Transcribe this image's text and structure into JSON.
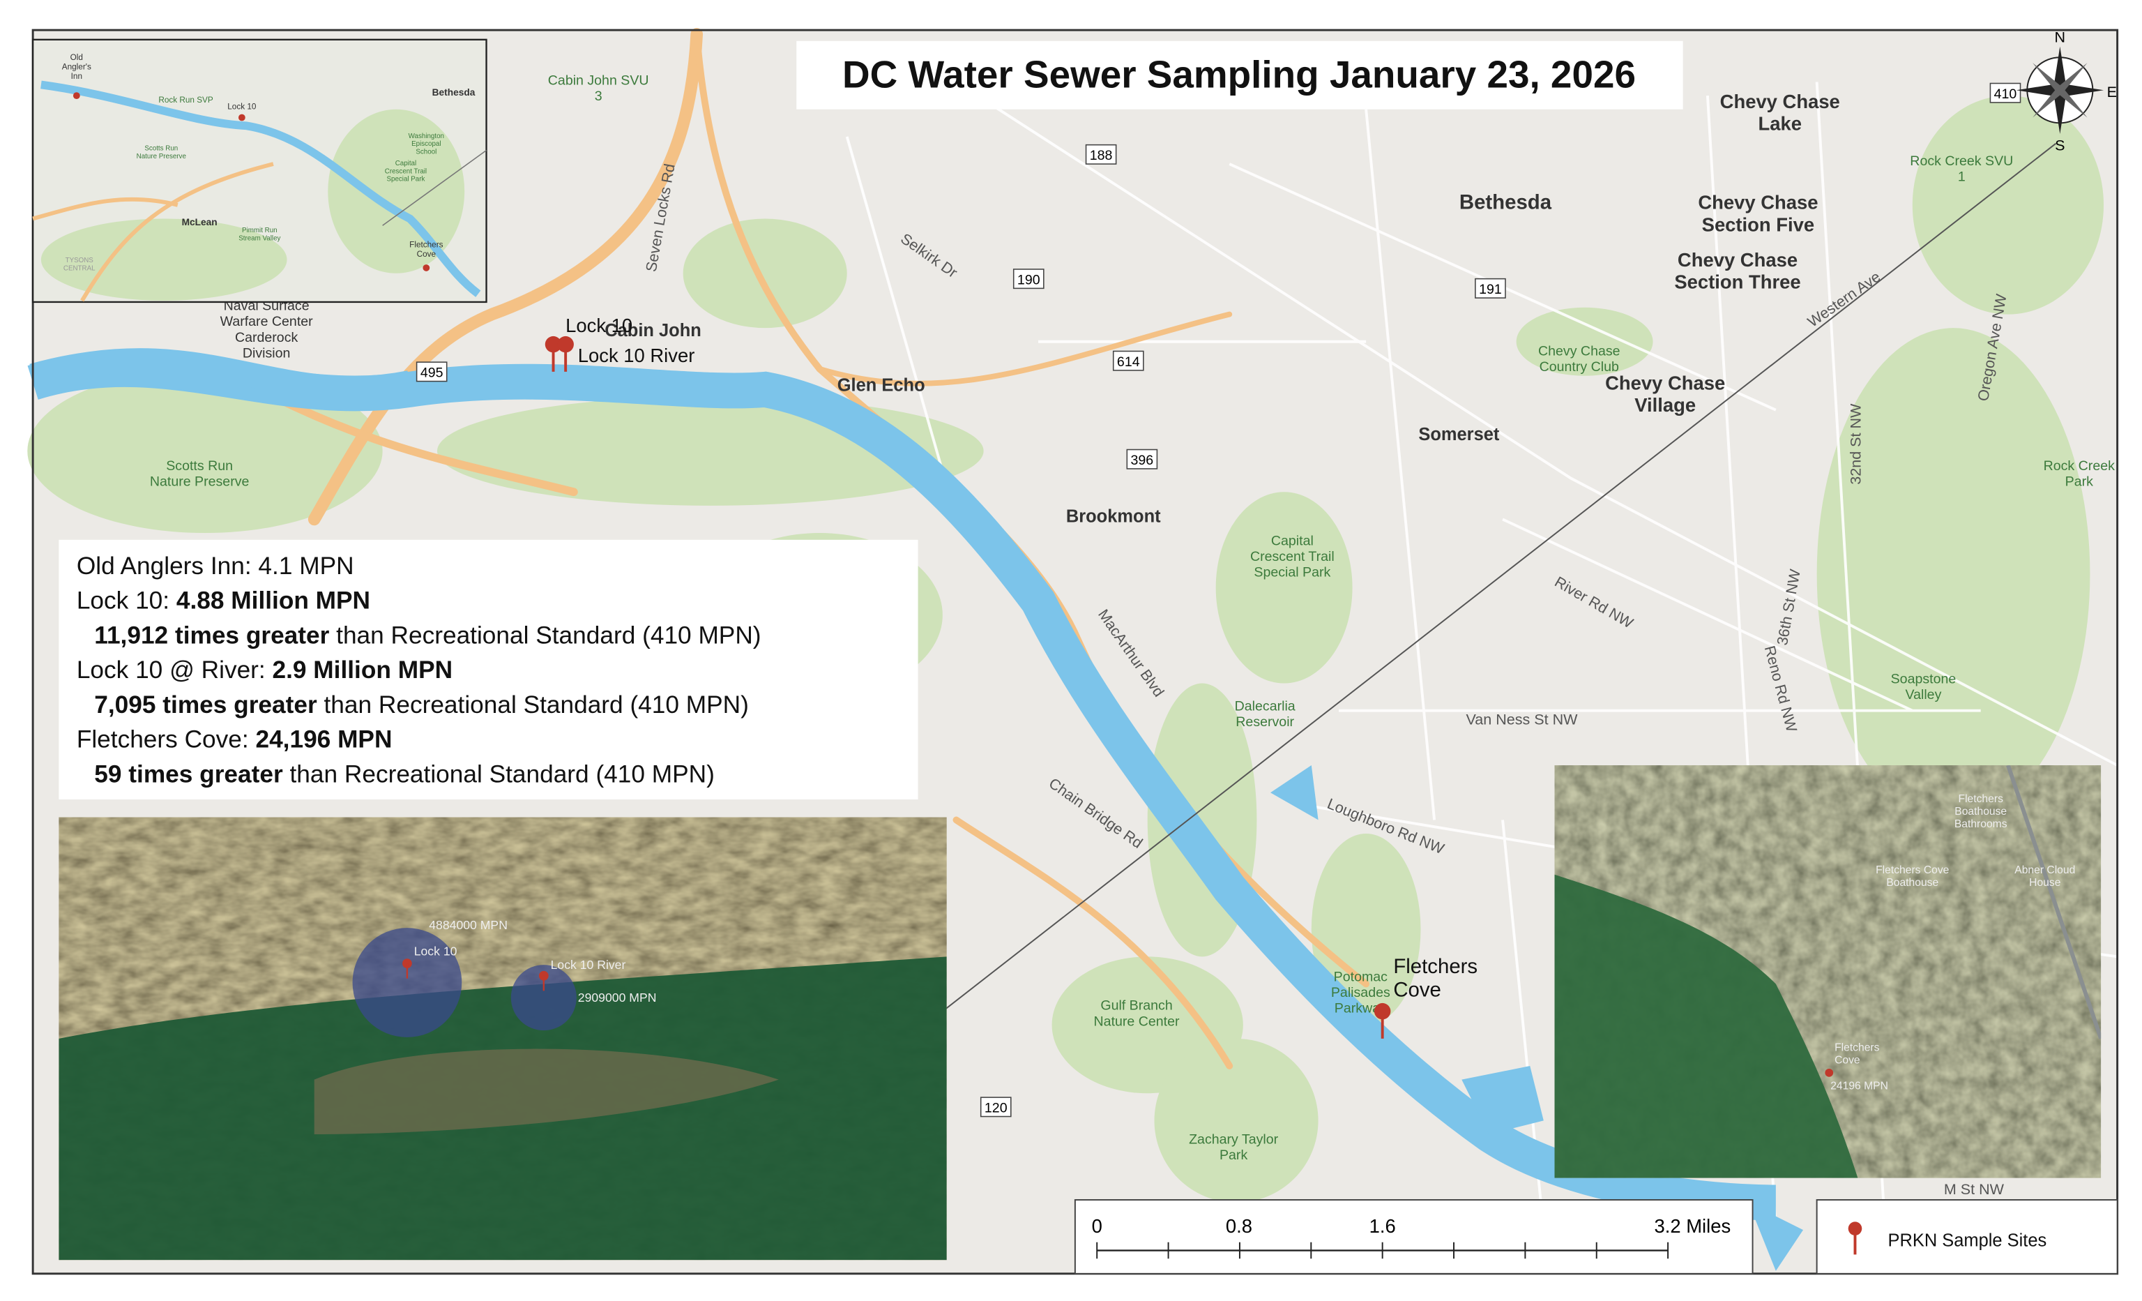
{
  "title": "DC Water Sewer Sampling January 23, 2026",
  "summary": [
    [
      {
        "text": "Old Anglers Inn: 4.1 MPN",
        "bold": false
      }
    ],
    [
      {
        "text": "Lock 10: ",
        "bold": false
      },
      {
        "text": "4.88 Million MPN",
        "bold": true
      }
    ],
    [
      {
        "text": "11,912 times greater",
        "bold": true
      },
      {
        "text": " than Recreational Standard (410 MPN)",
        "bold": false
      }
    ],
    [
      {
        "text": "Lock 10 @ River: ",
        "bold": false
      },
      {
        "text": "2.9 Million MPN",
        "bold": true
      }
    ],
    [
      {
        "text": "7,095 times greater",
        "bold": true
      },
      {
        "text": " than Recreational Standard (410 MPN)",
        "bold": false
      }
    ],
    [
      {
        "text": "Fletchers Cove: ",
        "bold": false
      },
      {
        "text": "24,196 MPN",
        "bold": true
      }
    ],
    [
      {
        "text": "59 times greater",
        "bold": true
      },
      {
        "text": " than Recreational Standard (410 MPN)",
        "bold": false
      }
    ]
  ],
  "pins": [
    [
      "Lock 10"
    ],
    [
      "Lock 10 River"
    ],
    [
      "Fletchers",
      "Cove"
    ]
  ],
  "map_labels": [
    [
      "Cabin John SVU",
      "3"
    ],
    [
      "Bethesda"
    ],
    [
      "Chevy Chase",
      "Lake"
    ],
    [
      "Chevy Chase",
      "Section Five"
    ],
    [
      "Chevy Chase",
      "Section Three"
    ],
    [
      "Rock Creek SVU",
      "1"
    ],
    [
      "Chevy Chase",
      "Country Club"
    ],
    [
      "Chevy Chase",
      "Village"
    ],
    [
      "Somerset"
    ],
    [
      "Glen Echo"
    ],
    [
      "Cabin John"
    ],
    [
      "Naval Surface",
      "Warfare Center",
      "Carderock",
      "Division"
    ],
    [
      "Scotts Run",
      "Nature Preserve"
    ],
    [
      "Brookmont"
    ],
    [
      "Capital",
      "Crescent Trail",
      "Special Park"
    ],
    [
      "Dalecarlia",
      "Reservoir"
    ],
    [
      "Gulf Branch",
      "Nature Center"
    ],
    [
      "Zachary Taylor",
      "Park"
    ],
    [
      "Potomac",
      "Palisades",
      "Parkway"
    ],
    [
      "Soapstone",
      "Valley"
    ],
    [
      "Rock Creek",
      "Park"
    ],
    [
      "Van Ness St NW"
    ],
    [
      "Loughboro Rd NW"
    ],
    [
      "River Rd NW"
    ],
    [
      "MacArthur Blvd"
    ],
    [
      "Chain Bridge Rd"
    ],
    [
      "Selkirk Dr"
    ],
    [
      "Seven Locks Rd"
    ],
    [
      "Western Ave"
    ],
    [
      "Oregon Ave NW"
    ],
    [
      "32nd St NW"
    ],
    [
      "36th St NW"
    ],
    [
      "Reno Rd NW"
    ],
    [
      "M St NW"
    ]
  ],
  "shields": [
    "188",
    "190",
    "191",
    "614",
    "396",
    "120",
    "495",
    "410"
  ],
  "overview_labels": [
    [
      "Old",
      "Angler's",
      "Inn"
    ],
    [
      "Rock Run SVP"
    ],
    [
      "Lock 10"
    ],
    [
      "Bethesda"
    ],
    [
      "Scotts Run",
      "Nature Preserve"
    ],
    [
      "Washington",
      "Episcopal",
      "School"
    ],
    [
      "Capital",
      "Crescent Trail",
      "Special Park"
    ],
    [
      "McLean"
    ],
    [
      "Pimmit Run",
      "Stream Valley"
    ],
    [
      "Fletchers",
      "Cove"
    ],
    [
      "TYSONS",
      "CENTRAL"
    ]
  ],
  "photo_left": [
    [
      "4884000 MPN"
    ],
    [
      "Lock 10"
    ],
    [
      "Lock 10 River"
    ],
    [
      "2909000 MPN"
    ]
  ],
  "photo_right": [
    [
      "Fletchers",
      "Boathouse",
      "Bathrooms"
    ],
    [
      "Fletchers Cove",
      "Boathouse"
    ],
    [
      "Abner Cloud",
      "House"
    ],
    [
      "Fletchers",
      "Cove"
    ],
    [
      "24196 MPN"
    ]
  ],
  "scale": [
    "0",
    "0.8",
    "1.6",
    "3.2 Miles"
  ],
  "legend": "PRKN Sample Sites",
  "compass": [
    "N",
    "E",
    "S"
  ]
}
